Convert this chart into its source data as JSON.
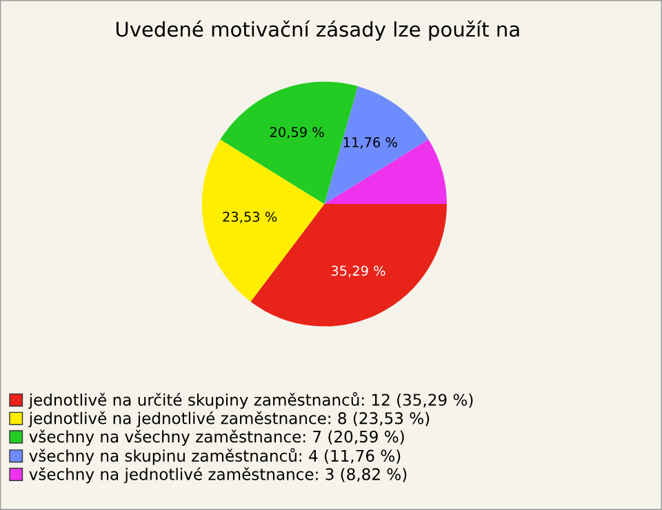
{
  "chart_data": {
    "type": "pie",
    "title": "Uvedené motivační zásady lze použít na",
    "categories": [
      "jednotlivě na určité skupiny zaměstnanců: 12 (35,29 %)",
      "jednotlivě na jednotlivé zaměstnance: 8 (23,53 %)",
      "všechny na všechny zaměstnance: 7 (20,59 %)",
      "všechny na skupinu zaměstnanců: 4 (11,76 %)",
      "všechny na jednotlivé zaměstnance: 3 (8,82 %)"
    ],
    "values": [
      35.29,
      23.53,
      20.59,
      11.76,
      8.82
    ],
    "colors": [
      "#e8231a",
      "#ffee00",
      "#22cc22",
      "#6f8cff",
      "#ee33ee"
    ],
    "value_labels": [
      "35,29 %",
      "23,53 %",
      "20,59 %",
      "11,76 %",
      null
    ],
    "legend": "bottom left"
  }
}
